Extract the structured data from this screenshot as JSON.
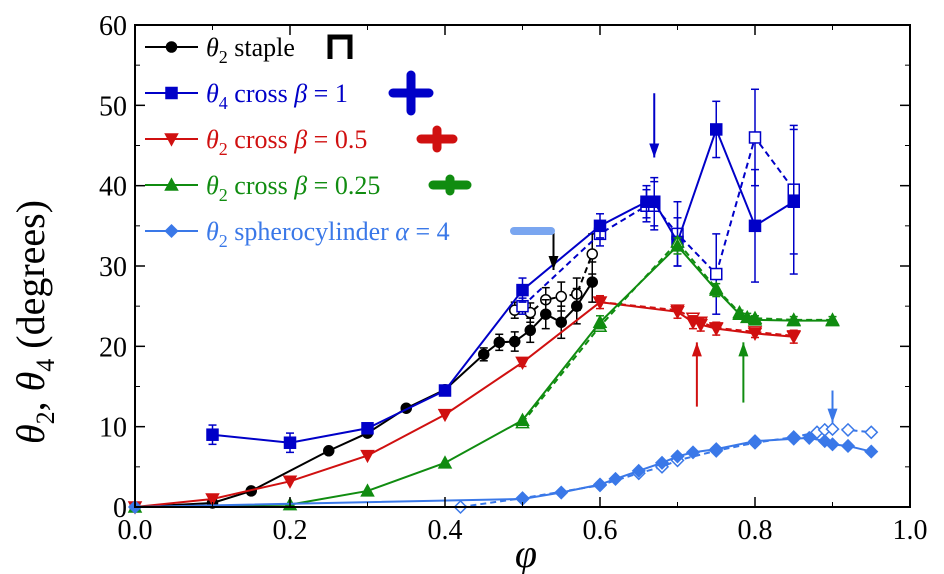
{
  "chart_data": {
    "type": "line",
    "title": "",
    "xlabel": "φ",
    "ylabel_parts": [
      "θ",
      "2",
      ", θ",
      "4",
      " (degrees)"
    ],
    "xlim": [
      0.0,
      1.0
    ],
    "ylim": [
      0,
      60
    ],
    "xticks": [
      0.0,
      0.2,
      0.4,
      0.6,
      0.8,
      1.0
    ],
    "xtick_labels": [
      "0.0",
      "0.2",
      "0.4",
      "0.6",
      "0.8",
      "1.0"
    ],
    "yticks": [
      0,
      10,
      20,
      30,
      40,
      50,
      60
    ],
    "ytick_labels": [
      "0",
      "10",
      "20",
      "30",
      "40",
      "50",
      "60"
    ],
    "grid": false,
    "legend_position": "top-left",
    "series": [
      {
        "name": "staple",
        "legend": {
          "sym": "θ",
          "sub": "2",
          "text": " staple"
        },
        "color": "#000000",
        "marker": "circle",
        "shape_icon": "staple-icon",
        "x": [
          0.0,
          0.1,
          0.15,
          0.25,
          0.3,
          0.35,
          0.4,
          0.45,
          0.47,
          0.49,
          0.51,
          0.53,
          0.55,
          0.57,
          0.59
        ],
        "y": [
          0.0,
          0.5,
          2.0,
          7.0,
          9.2,
          12.3,
          14.6,
          19.0,
          20.5,
          20.6,
          22.0,
          24.0,
          23.0,
          25.0,
          28.0
        ],
        "err": [
          0,
          0,
          0,
          0,
          0,
          0,
          0,
          0.8,
          1.0,
          1.2,
          1.5,
          1.8,
          2.0,
          2.2,
          2.5
        ],
        "dashed": {
          "x": [
            0.49,
            0.51,
            0.53,
            0.55,
            0.57,
            0.59
          ],
          "y": [
            24.5,
            24.2,
            25.8,
            26.2,
            26.5,
            31.5
          ],
          "err": [
            1.0,
            1.2,
            1.5,
            1.8,
            2.0,
            2.5
          ]
        }
      },
      {
        "name": "cross beta 1",
        "legend": {
          "sym": "θ",
          "sub": "4",
          "text": " cross ",
          "greek": "β",
          "eq": " = 1"
        },
        "color": "#0000c8",
        "marker": "square",
        "shape_icon": "cross-beta-1-icon",
        "x": [
          0.1,
          0.2,
          0.3,
          0.4,
          0.5,
          0.6,
          0.66,
          0.67,
          0.7,
          0.75,
          0.8,
          0.85
        ],
        "y": [
          9.0,
          8.0,
          9.8,
          14.5,
          27.0,
          35.0,
          38.0,
          38.0,
          33.0,
          47.0,
          35.0,
          38.0
        ],
        "err": [
          1.2,
          1.2,
          0,
          0.5,
          1.5,
          1.5,
          2.0,
          3.0,
          3.0,
          3.5,
          7.0,
          9.0
        ],
        "dashed": {
          "x": [
            0.5,
            0.6,
            0.66,
            0.67,
            0.7,
            0.75,
            0.8,
            0.85
          ],
          "y": [
            25.0,
            34.0,
            37.5,
            37.5,
            34.0,
            29.0,
            46.0,
            39.5
          ],
          "err": [
            1.0,
            1.5,
            2.0,
            3.0,
            4.0,
            5.0,
            6.0,
            8.0
          ]
        }
      },
      {
        "name": "cross beta 0.5",
        "legend": {
          "sym": "θ",
          "sub": "2",
          "text": " cross ",
          "greek": "β",
          "eq": " = 0.5"
        },
        "color": "#d01010",
        "marker": "triangle-down",
        "shape_icon": "cross-beta-0.5-icon",
        "x": [
          0.0,
          0.1,
          0.2,
          0.3,
          0.4,
          0.5,
          0.6,
          0.7,
          0.72,
          0.73,
          0.75,
          0.8,
          0.85
        ],
        "y": [
          0.0,
          1.0,
          3.2,
          6.4,
          11.5,
          18.0,
          25.5,
          24.3,
          23.0,
          22.7,
          22.2,
          21.6,
          21.2
        ],
        "err": [
          0,
          0,
          0,
          0,
          0,
          0.5,
          0.8,
          0.8,
          0.8,
          0.8,
          0.8,
          0.5,
          0.8
        ],
        "dashed": {
          "x": [
            0.6,
            0.7,
            0.72,
            0.73,
            0.75,
            0.8,
            0.85
          ],
          "y": [
            25.5,
            24.5,
            23.5,
            23.0,
            22.3,
            21.8,
            21.3
          ],
          "err": [
            0,
            0,
            0,
            0,
            0,
            0,
            0
          ]
        }
      },
      {
        "name": "cross beta 0.25",
        "legend": {
          "sym": "θ",
          "sub": "2",
          "text": " cross ",
          "greek": "β",
          "eq": " = 0.25"
        },
        "color": "#108c10",
        "marker": "triangle-up",
        "shape_icon": "cross-beta-0.25-icon",
        "x": [
          0.0,
          0.2,
          0.3,
          0.4,
          0.5,
          0.6,
          0.7,
          0.75,
          0.78,
          0.79,
          0.8,
          0.85,
          0.9
        ],
        "y": [
          0.0,
          0.3,
          2.0,
          5.5,
          10.8,
          23.0,
          32.5,
          27.0,
          24.0,
          23.6,
          23.3,
          23.2,
          23.2
        ],
        "err": [
          0,
          0,
          0,
          0,
          0,
          0.8,
          1.0,
          0.8,
          0.5,
          0.5,
          0.5,
          0.5,
          0.5
        ],
        "dashed": {
          "x": [
            0.5,
            0.6,
            0.7,
            0.75,
            0.78,
            0.8,
            0.85,
            0.9
          ],
          "y": [
            10.5,
            22.5,
            33.0,
            27.2,
            24.2,
            23.5,
            23.3,
            23.3
          ],
          "err": [
            0,
            0,
            0,
            0,
            0,
            0,
            0,
            0
          ]
        }
      },
      {
        "name": "spherocylinder",
        "legend": {
          "sym": "θ",
          "sub": "2",
          "text": " spherocylinder ",
          "greek": "α",
          "eq": " = 4"
        },
        "color": "#3a78e8",
        "marker": "diamond",
        "shape_icon": "spherocylinder-icon",
        "x": [
          0.0,
          0.5,
          0.55,
          0.6,
          0.62,
          0.65,
          0.68,
          0.7,
          0.72,
          0.75,
          0.8,
          0.85,
          0.87,
          0.89,
          0.9,
          0.92,
          0.95
        ],
        "y": [
          0.0,
          1.0,
          1.8,
          2.8,
          3.5,
          4.5,
          5.5,
          6.3,
          6.8,
          7.2,
          8.2,
          8.5,
          8.6,
          8.2,
          7.8,
          7.6,
          6.9
        ],
        "err": [
          0,
          0,
          0,
          0,
          0,
          0,
          0,
          0,
          0,
          0,
          0,
          0,
          0,
          0,
          0,
          0,
          0
        ],
        "dashed": {
          "x": [
            0.42,
            0.5,
            0.6,
            0.65,
            0.68,
            0.7,
            0.75,
            0.8,
            0.85,
            0.88,
            0.89,
            0.9,
            0.92,
            0.95
          ],
          "y": [
            0.0,
            1.1,
            2.7,
            4.2,
            5.0,
            5.8,
            7.0,
            8.0,
            8.7,
            9.3,
            9.6,
            9.7,
            9.6,
            9.3
          ],
          "err": [
            0,
            0,
            0,
            0,
            0,
            0,
            0,
            0,
            0,
            0,
            0,
            0,
            0,
            0
          ]
        }
      }
    ],
    "arrows": [
      {
        "color": "#000000",
        "x": 0.54,
        "y_from": 34.5,
        "y_to": 29.5,
        "direction": "down"
      },
      {
        "color": "#0000c8",
        "x": 0.67,
        "y_from": 51.5,
        "y_to": 43.5,
        "direction": "down"
      },
      {
        "color": "#d01010",
        "x": 0.725,
        "y_from": 12.5,
        "y_to": 20.5,
        "direction": "up"
      },
      {
        "color": "#108c10",
        "x": 0.785,
        "y_from": 13.0,
        "y_to": 20.5,
        "direction": "up"
      },
      {
        "color": "#3a78e8",
        "x": 0.9,
        "y_from": 14.5,
        "y_to": 10.5,
        "direction": "down"
      }
    ]
  }
}
